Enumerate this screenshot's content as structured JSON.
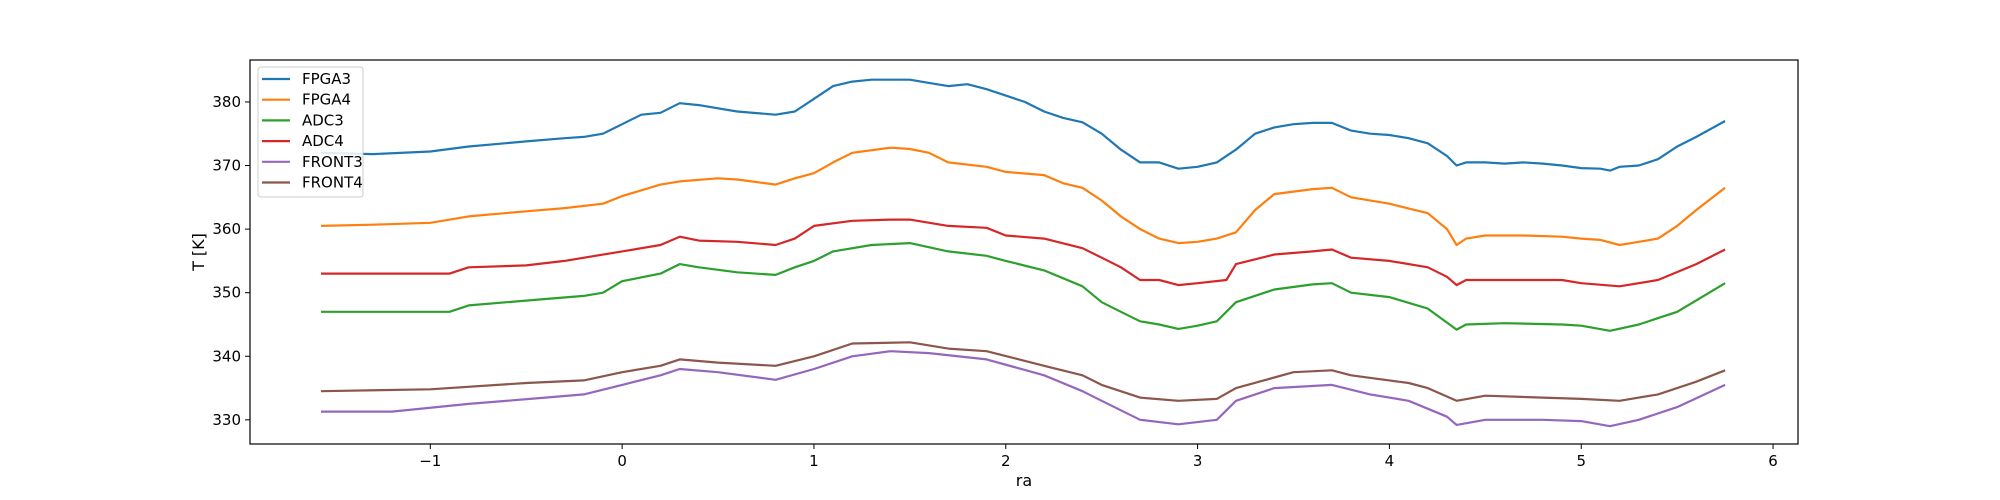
{
  "chart_data": {
    "type": "line",
    "title": "",
    "xlabel": "ra",
    "ylabel": "T [K]",
    "xlim": [
      -1.94,
      6.13
    ],
    "ylim": [
      326.2,
      386.6
    ],
    "xticks": [
      -1,
      0,
      1,
      2,
      3,
      4,
      5,
      6
    ],
    "xtick_labels": [
      "−1",
      "0",
      "1",
      "2",
      "3",
      "4",
      "5",
      "6"
    ],
    "yticks": [
      330,
      340,
      350,
      360,
      370,
      380
    ],
    "ytick_labels": [
      "330",
      "340",
      "350",
      "360",
      "370",
      "380"
    ],
    "grid": false,
    "legend_position": "top-left",
    "series": [
      {
        "name": "FPGA3",
        "color": "#1f77b4",
        "x": [
          -1.57,
          -1.3,
          -1,
          -0.8,
          -0.5,
          -0.3,
          -0.2,
          -0.1,
          0,
          0.1,
          0.2,
          0.3,
          0.4,
          0.5,
          0.6,
          0.8,
          0.9,
          1.0,
          1.1,
          1.2,
          1.3,
          1.4,
          1.5,
          1.6,
          1.7,
          1.8,
          1.9,
          2.0,
          2.1,
          2.2,
          2.3,
          2.4,
          2.5,
          2.6,
          2.7,
          2.8,
          2.9,
          3.0,
          3.1,
          3.2,
          3.3,
          3.4,
          3.5,
          3.6,
          3.7,
          3.8,
          3.9,
          4.0,
          4.1,
          4.2,
          4.3,
          4.35,
          4.4,
          4.5,
          4.6,
          4.7,
          4.8,
          4.9,
          5.0,
          5.1,
          5.15,
          5.2,
          5.3,
          5.4,
          5.5,
          5.6,
          5.75
        ],
        "y": [
          372,
          371.8,
          372.2,
          373,
          373.8,
          374.3,
          374.5,
          375,
          376.5,
          378,
          378.3,
          379.8,
          379.5,
          379,
          378.5,
          378,
          378.5,
          380.5,
          382.5,
          383.2,
          383.5,
          383.5,
          383.5,
          383,
          382.5,
          382.8,
          382,
          381,
          380,
          378.5,
          377.5,
          376.8,
          375,
          372.5,
          370.5,
          370.5,
          369.5,
          369.8,
          370.5,
          372.5,
          375,
          376,
          376.5,
          376.7,
          376.7,
          375.5,
          375,
          374.8,
          374.3,
          373.5,
          371.5,
          370,
          370.5,
          370.5,
          370.3,
          370.5,
          370.3,
          370,
          369.6,
          369.5,
          369.2,
          369.8,
          370,
          371,
          373,
          374.5,
          377
        ]
      },
      {
        "name": "FPGA4",
        "color": "#ff7f0e",
        "x": [
          -1.57,
          -1.3,
          -1,
          -0.8,
          -0.5,
          -0.3,
          -0.1,
          0,
          0.2,
          0.3,
          0.5,
          0.6,
          0.8,
          0.9,
          1.0,
          1.1,
          1.2,
          1.4,
          1.5,
          1.6,
          1.7,
          1.9,
          2.0,
          2.2,
          2.3,
          2.4,
          2.5,
          2.6,
          2.7,
          2.8,
          2.9,
          3.0,
          3.1,
          3.2,
          3.3,
          3.4,
          3.6,
          3.7,
          3.8,
          4.0,
          4.2,
          4.3,
          4.35,
          4.4,
          4.5,
          4.7,
          4.9,
          5.0,
          5.1,
          5.2,
          5.3,
          5.4,
          5.5,
          5.6,
          5.75
        ],
        "y": [
          360.5,
          360.7,
          361,
          362,
          362.8,
          363.3,
          364,
          365.2,
          367,
          367.5,
          368,
          367.8,
          367,
          368,
          368.8,
          370.5,
          372,
          372.8,
          372.6,
          372,
          370.5,
          369.8,
          369,
          368.5,
          367.2,
          366.5,
          364.5,
          362,
          360,
          358.5,
          357.8,
          358,
          358.5,
          359.5,
          363,
          365.5,
          366.3,
          366.5,
          365,
          364,
          362.5,
          360,
          357.5,
          358.5,
          359,
          359,
          358.8,
          358.5,
          358.3,
          357.5,
          358,
          358.5,
          360.5,
          363,
          366.5
        ]
      },
      {
        "name": "ADC3",
        "color": "#2ca02c",
        "x": [
          -1.57,
          -0.9,
          -0.8,
          -0.6,
          -0.4,
          -0.2,
          -0.1,
          0,
          0.2,
          0.3,
          0.4,
          0.6,
          0.8,
          0.9,
          1.0,
          1.1,
          1.3,
          1.5,
          1.7,
          1.9,
          2.0,
          2.2,
          2.4,
          2.5,
          2.6,
          2.7,
          2.8,
          2.9,
          3.0,
          3.1,
          3.2,
          3.4,
          3.6,
          3.7,
          3.8,
          4.0,
          4.2,
          4.35,
          4.4,
          4.6,
          4.9,
          5.0,
          5.15,
          5.3,
          5.5,
          5.75
        ],
        "y": [
          347,
          347,
          348,
          348.5,
          349,
          349.5,
          350,
          351.8,
          353,
          354.5,
          354,
          353.2,
          352.8,
          354,
          355,
          356.5,
          357.5,
          357.8,
          356.5,
          355.8,
          355,
          353.5,
          351,
          348.5,
          347,
          345.5,
          345,
          344.3,
          344.8,
          345.5,
          348.5,
          350.5,
          351.3,
          351.5,
          350,
          349.3,
          347.5,
          344.2,
          345,
          345.2,
          345,
          344.8,
          344,
          345,
          347,
          351.5
        ]
      },
      {
        "name": "ADC4",
        "color": "#d62728",
        "x": [
          -1.57,
          -0.9,
          -0.8,
          -0.5,
          -0.3,
          0,
          0.2,
          0.3,
          0.4,
          0.6,
          0.8,
          0.9,
          1.0,
          1.2,
          1.4,
          1.5,
          1.7,
          1.9,
          2.0,
          2.2,
          2.4,
          2.5,
          2.6,
          2.7,
          2.8,
          2.9,
          3.0,
          3.15,
          3.2,
          3.4,
          3.6,
          3.7,
          3.8,
          4.0,
          4.2,
          4.3,
          4.35,
          4.4,
          4.6,
          4.9,
          5.0,
          5.2,
          5.4,
          5.6,
          5.75
        ],
        "y": [
          353,
          353,
          354,
          354.3,
          355,
          356.5,
          357.5,
          358.8,
          358.2,
          358,
          357.5,
          358.5,
          360.5,
          361.3,
          361.5,
          361.5,
          360.5,
          360.2,
          359,
          358.5,
          357,
          355.5,
          354,
          352,
          352,
          351.2,
          351.5,
          352,
          354.5,
          356,
          356.5,
          356.8,
          355.5,
          355,
          354,
          352.5,
          351.2,
          352,
          352,
          352,
          351.5,
          351,
          352,
          354.5,
          356.8
        ]
      },
      {
        "name": "FRONT3",
        "color": "#9467bd",
        "x": [
          -1.57,
          -1.2,
          -0.8,
          -0.4,
          -0.2,
          0,
          0.2,
          0.3,
          0.5,
          0.8,
          1.0,
          1.2,
          1.4,
          1.6,
          1.9,
          2.2,
          2.4,
          2.5,
          2.7,
          2.9,
          3.1,
          3.2,
          3.4,
          3.7,
          3.9,
          4.1,
          4.3,
          4.35,
          4.5,
          4.8,
          5.0,
          5.15,
          5.3,
          5.5,
          5.75
        ],
        "y": [
          331.3,
          331.3,
          332.5,
          333.5,
          334,
          335.5,
          337,
          338,
          337.5,
          336.3,
          338,
          340,
          340.8,
          340.5,
          339.5,
          337,
          334.5,
          333,
          330,
          329.3,
          330,
          333,
          335,
          335.5,
          334,
          333,
          330.5,
          329.2,
          330,
          330,
          329.8,
          329,
          330,
          332,
          335.5
        ]
      },
      {
        "name": "FRONT4",
        "color": "#8c564b",
        "x": [
          -1.57,
          -1,
          -0.5,
          -0.2,
          0,
          0.2,
          0.3,
          0.5,
          0.8,
          1.0,
          1.2,
          1.5,
          1.7,
          1.9,
          2.2,
          2.4,
          2.5,
          2.7,
          2.9,
          3.1,
          3.2,
          3.5,
          3.7,
          3.8,
          4.1,
          4.2,
          4.35,
          4.5,
          4.8,
          5.0,
          5.2,
          5.4,
          5.6,
          5.75
        ],
        "y": [
          334.5,
          334.8,
          335.8,
          336.2,
          337.5,
          338.5,
          339.5,
          339,
          338.5,
          340,
          342,
          342.2,
          341.2,
          340.8,
          338.5,
          337,
          335.5,
          333.5,
          333,
          333.3,
          335,
          337.5,
          337.8,
          337,
          335.8,
          335,
          333,
          333.8,
          333.5,
          333.3,
          333,
          334,
          336,
          337.8
        ]
      }
    ]
  }
}
